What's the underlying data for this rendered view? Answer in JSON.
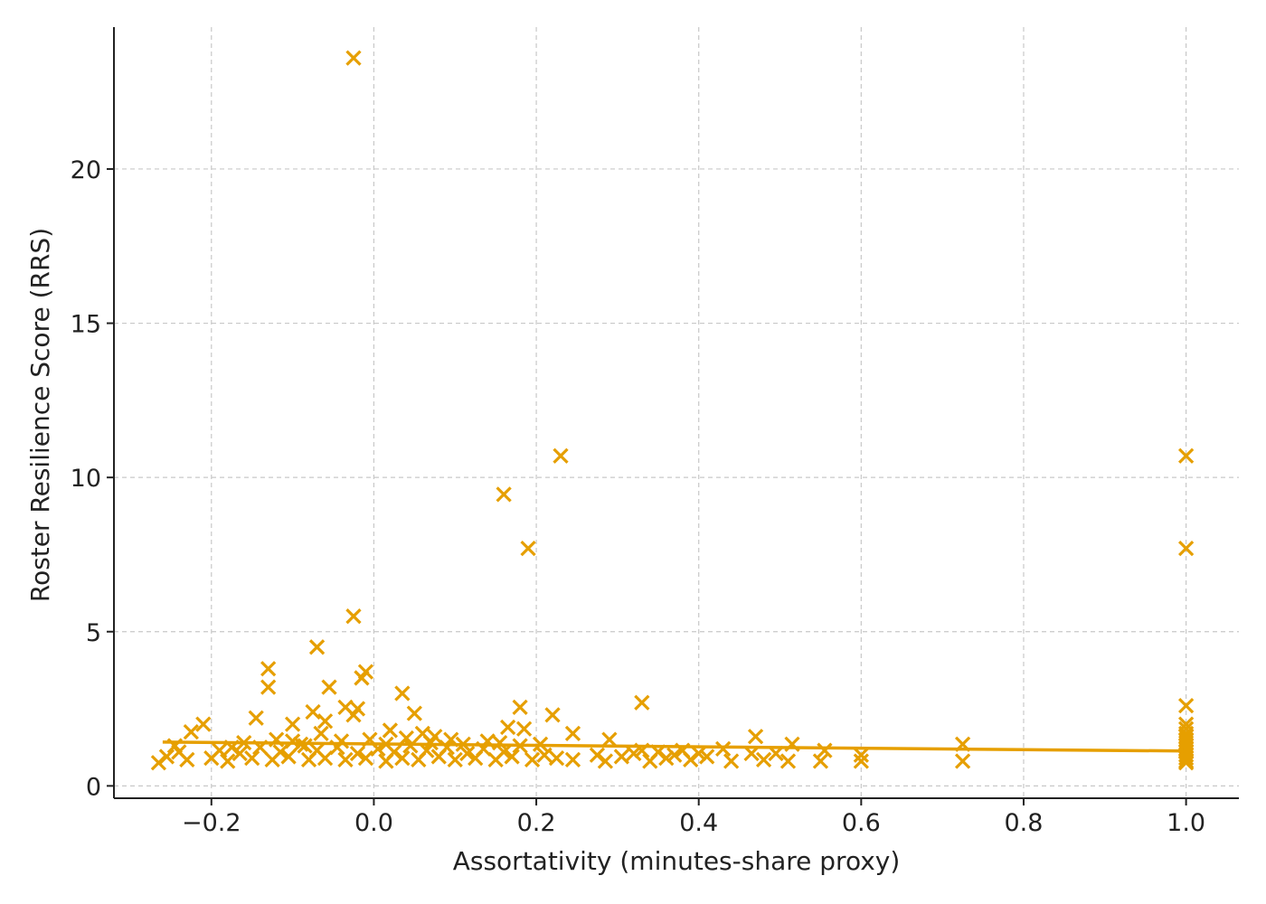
{
  "chart_data": {
    "type": "scatter",
    "title": "",
    "xlabel": "Assortativity (minutes-share proxy)",
    "ylabel": "Roster Resilience Score (RRS)",
    "xlim": [
      -0.32,
      1.065
    ],
    "ylim": [
      -0.4,
      24.6
    ],
    "x_ticks": [
      -0.2,
      0.0,
      0.2,
      0.4,
      0.6,
      0.8,
      1.0
    ],
    "x_tick_labels": [
      "−0.2",
      "0.0",
      "0.2",
      "0.4",
      "0.6",
      "0.8",
      "1.0"
    ],
    "y_ticks": [
      0,
      5,
      10,
      15,
      20
    ],
    "y_tick_labels": [
      "0",
      "5",
      "10",
      "15",
      "20"
    ],
    "grid": true,
    "marker": "x",
    "color": "#E69F00",
    "series": [
      {
        "points": [
          [
            -0.025,
            23.6
          ],
          [
            0.23,
            10.7
          ],
          [
            1.0,
            10.7
          ],
          [
            0.16,
            9.45
          ],
          [
            0.19,
            7.7
          ],
          [
            1.0,
            7.7
          ],
          [
            -0.025,
            5.5
          ],
          [
            -0.07,
            4.5
          ],
          [
            -0.01,
            3.7
          ],
          [
            -0.015,
            3.5
          ],
          [
            -0.13,
            3.8
          ],
          [
            -0.13,
            3.2
          ],
          [
            -0.055,
            3.2
          ],
          [
            0.035,
            3.0
          ],
          [
            0.33,
            2.7
          ],
          [
            -0.035,
            2.55
          ],
          [
            -0.02,
            2.5
          ],
          [
            -0.075,
            2.4
          ],
          [
            0.05,
            2.35
          ],
          [
            -0.025,
            2.3
          ],
          [
            0.18,
            2.55
          ],
          [
            0.22,
            2.3
          ],
          [
            -0.145,
            2.2
          ],
          [
            -0.06,
            2.1
          ],
          [
            -0.1,
            2.0
          ],
          [
            -0.21,
            2.0
          ],
          [
            -0.225,
            1.75
          ],
          [
            0.165,
            1.9
          ],
          [
            0.185,
            1.85
          ],
          [
            0.245,
            1.7
          ],
          [
            0.02,
            1.8
          ],
          [
            0.06,
            1.7
          ],
          [
            -0.065,
            1.7
          ],
          [
            0.47,
            1.6
          ],
          [
            0.075,
            1.6
          ],
          [
            -0.12,
            1.5
          ],
          [
            0.29,
            1.5
          ],
          [
            0.14,
            1.45
          ],
          [
            -0.245,
            1.3
          ],
          [
            -0.175,
            1.25
          ],
          [
            0.725,
            1.35
          ],
          [
            0.515,
            1.35
          ],
          [
            0.43,
            1.2
          ],
          [
            0.555,
            1.15
          ],
          [
            0.38,
            1.15
          ],
          [
            0.35,
            1.1
          ],
          [
            0.32,
            1.05
          ],
          [
            0.37,
            1.0
          ],
          [
            0.41,
            0.95
          ],
          [
            0.465,
            1.05
          ],
          [
            0.495,
            1.05
          ],
          [
            0.6,
            1.0
          ],
          [
            0.6,
            0.8
          ],
          [
            0.55,
            0.8
          ],
          [
            0.725,
            0.8
          ],
          [
            0.51,
            0.8
          ],
          [
            0.48,
            0.85
          ],
          [
            0.44,
            0.8
          ],
          [
            0.39,
            0.85
          ],
          [
            0.34,
            0.8
          ],
          [
            0.285,
            0.8
          ],
          [
            0.275,
            1.0
          ],
          [
            0.245,
            0.85
          ],
          [
            -0.265,
            0.75
          ],
          [
            -0.255,
            0.95
          ],
          [
            -0.24,
            1.1
          ],
          [
            -0.23,
            0.85
          ],
          [
            -0.2,
            0.9
          ],
          [
            -0.19,
            1.15
          ],
          [
            -0.18,
            0.8
          ],
          [
            -0.165,
            1.05
          ],
          [
            -0.15,
            0.9
          ],
          [
            -0.14,
            1.25
          ],
          [
            -0.125,
            0.85
          ],
          [
            -0.115,
            1.1
          ],
          [
            -0.105,
            0.95
          ],
          [
            -0.09,
            1.35
          ],
          [
            -0.08,
            0.85
          ],
          [
            -0.07,
            1.15
          ],
          [
            -0.06,
            0.9
          ],
          [
            -0.045,
            1.25
          ],
          [
            -0.035,
            0.85
          ],
          [
            -0.02,
            1.05
          ],
          [
            -0.01,
            0.9
          ],
          [
            0.005,
            1.2
          ],
          [
            0.015,
            0.8
          ],
          [
            0.025,
            1.1
          ],
          [
            0.035,
            0.9
          ],
          [
            0.045,
            1.3
          ],
          [
            0.055,
            0.85
          ],
          [
            0.065,
            1.15
          ],
          [
            0.08,
            0.95
          ],
          [
            0.09,
            1.25
          ],
          [
            0.1,
            0.85
          ],
          [
            0.115,
            1.05
          ],
          [
            0.125,
            0.9
          ],
          [
            0.135,
            1.2
          ],
          [
            0.15,
            0.85
          ],
          [
            0.16,
            1.1
          ],
          [
            0.17,
            0.95
          ],
          [
            0.18,
            1.3
          ],
          [
            0.195,
            0.85
          ],
          [
            0.21,
            1.0
          ],
          [
            0.225,
            0.9
          ],
          [
            0.305,
            0.95
          ],
          [
            0.33,
            1.15
          ],
          [
            0.36,
            0.9
          ],
          [
            0.4,
            1.05
          ],
          [
            -0.005,
            1.5
          ],
          [
            0.04,
            1.55
          ],
          [
            0.07,
            1.4
          ],
          [
            -0.1,
            1.45
          ],
          [
            -0.16,
            1.4
          ],
          [
            -0.04,
            1.45
          ],
          [
            0.11,
            1.35
          ],
          [
            0.155,
            1.4
          ],
          [
            0.205,
            1.35
          ],
          [
            0.015,
            1.35
          ],
          [
            -0.085,
            1.3
          ],
          [
            0.095,
            1.5
          ],
          [
            1.0,
            2.6
          ],
          [
            1.0,
            2.0
          ],
          [
            1.0,
            1.85
          ],
          [
            1.0,
            1.7
          ],
          [
            1.0,
            1.6
          ],
          [
            1.0,
            1.5
          ],
          [
            1.0,
            1.4
          ],
          [
            1.0,
            1.3
          ],
          [
            1.0,
            1.2
          ],
          [
            1.0,
            1.1
          ],
          [
            1.0,
            1.0
          ],
          [
            1.0,
            0.9
          ],
          [
            1.0,
            0.8
          ],
          [
            1.0,
            0.75
          ]
        ]
      }
    ],
    "trend_line": {
      "x": [
        -0.26,
        1.0
      ],
      "y": [
        1.42,
        1.13
      ]
    }
  }
}
